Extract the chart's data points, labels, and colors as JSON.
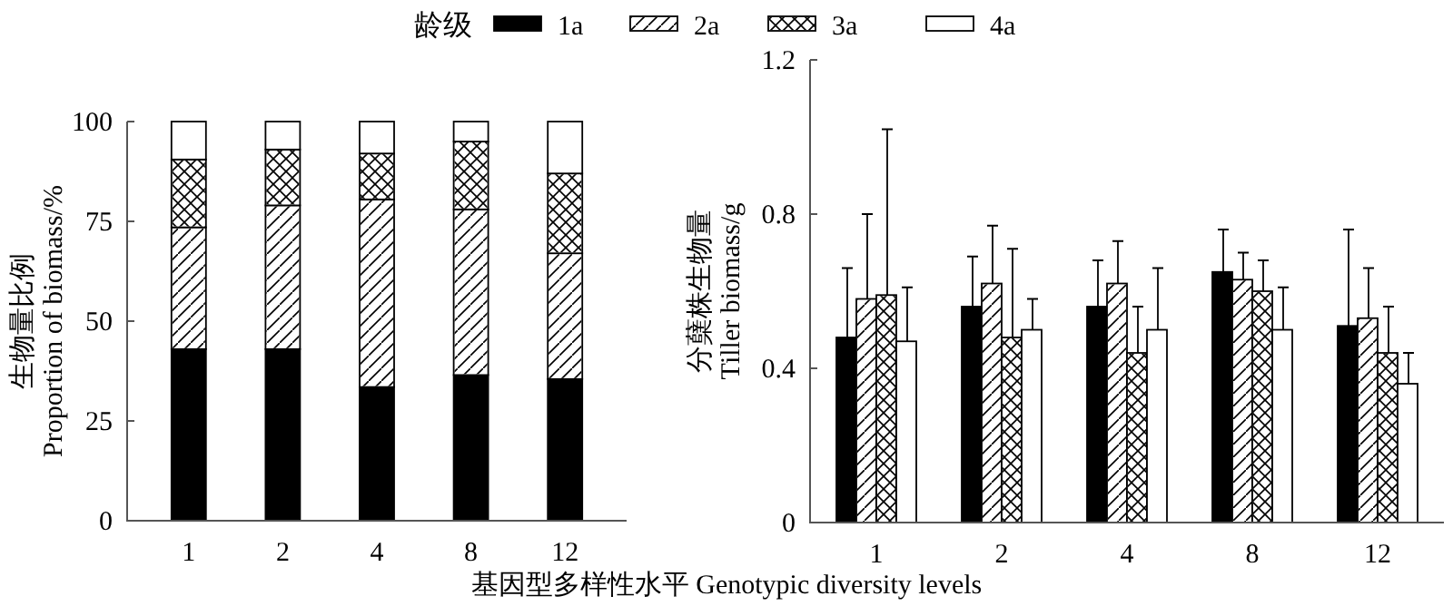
{
  "chart_data": [
    {
      "type": "bar",
      "stacked": true,
      "categories": [
        "1",
        "2",
        "4",
        "8",
        "12"
      ],
      "xlabel": "基因型多样性水平 Genotypic diversity levels",
      "ylabel": "生物量比例\nProportion of biomass/%",
      "ylim": [
        0,
        100
      ],
      "yticks": [
        0,
        25,
        50,
        75,
        100
      ],
      "legend": "top",
      "legend_title": "龄级",
      "series": [
        {
          "name": "1a",
          "color": "#000000",
          "values": [
            43,
            43,
            33.5,
            36.5,
            35.5
          ]
        },
        {
          "name": "2a",
          "color": "#ffffff",
          "values": [
            30.5,
            36,
            47,
            41.5,
            31.5
          ]
        },
        {
          "name": "3a",
          "color": "#ffffff",
          "values": [
            17,
            14,
            11.5,
            17,
            20
          ]
        },
        {
          "name": "4a",
          "color": "#ffffff",
          "values": [
            9.5,
            7,
            8,
            5,
            13
          ]
        }
      ]
    },
    {
      "type": "bar",
      "categories": [
        "1",
        "2",
        "4",
        "8",
        "12"
      ],
      "ylabel": "分蘖株生物量\nTiller biomass/g",
      "ylim": [
        0,
        1.2
      ],
      "yticks": [
        0,
        0.4,
        0.8,
        1.2
      ],
      "series": [
        {
          "color": "#000000",
          "values": [
            0.48,
            0.56,
            0.56,
            0.65,
            0.51
          ],
          "errors": [
            [
              0.48,
              0.66
            ],
            [
              0.56,
              0.69
            ],
            [
              0.56,
              0.68
            ],
            [
              0.65,
              0.76
            ],
            [
              0.51,
              0.76
            ]
          ]
        },
        {
          "color": "#ffffff",
          "values": [
            0.58,
            0.62,
            0.62,
            0.63,
            0.53
          ],
          "errors": [
            [
              0.58,
              0.8
            ],
            [
              0.62,
              0.77
            ],
            [
              0.62,
              0.73
            ],
            [
              0.63,
              0.7
            ],
            [
              0.53,
              0.66
            ]
          ]
        },
        {
          "color": "#ffffff",
          "values": [
            0.59,
            0.48,
            0.44,
            0.6,
            0.44
          ],
          "errors": [
            [
              0.59,
              1.02
            ],
            [
              0.48,
              0.71
            ],
            [
              0.44,
              0.56
            ],
            [
              0.6,
              0.68
            ],
            [
              0.44,
              0.56
            ]
          ]
        },
        {
          "color": "#ffffff",
          "values": [
            0.47,
            0.5,
            0.5,
            0.5,
            0.36
          ],
          "errors": [
            [
              0.47,
              0.61
            ],
            [
              0.5,
              0.58
            ],
            [
              0.5,
              0.66
            ],
            [
              0.5,
              0.61
            ],
            [
              0.36,
              0.44
            ]
          ]
        }
      ]
    }
  ]
}
